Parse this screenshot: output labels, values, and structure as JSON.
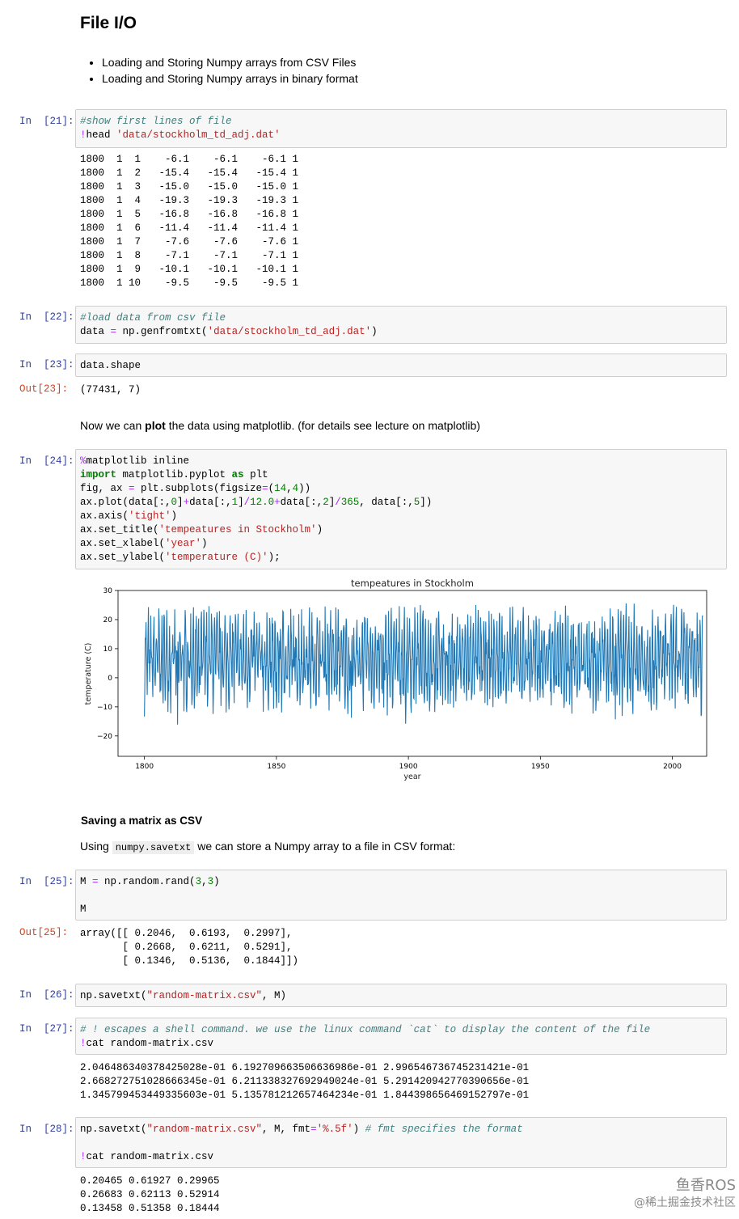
{
  "heading": "File I/O",
  "bullets": [
    "Loading and Storing Numpy arrays from CSV Files",
    "Loading and Storing Numpy arrays in binary format"
  ],
  "cells": {
    "c21": {
      "prompt": "In  [21]:",
      "comment": "#show first lines of file",
      "bang": "!",
      "cmd": "head ",
      "arg": "'data/stockholm_td_adj.dat'"
    },
    "c21_out": [
      "1800  1  1    -6.1    -6.1    -6.1 1",
      "1800  1  2   -15.4   -15.4   -15.4 1",
      "1800  1  3   -15.0   -15.0   -15.0 1",
      "1800  1  4   -19.3   -19.3   -19.3 1",
      "1800  1  5   -16.8   -16.8   -16.8 1",
      "1800  1  6   -11.4   -11.4   -11.4 1",
      "1800  1  7    -7.6    -7.6    -7.6 1",
      "1800  1  8    -7.1    -7.1    -7.1 1",
      "1800  1  9   -10.1   -10.1   -10.1 1",
      "1800  1 10    -9.5    -9.5    -9.5 1"
    ],
    "c22": {
      "prompt": "In  [22]:",
      "comment": "#load data from csv file",
      "code_pre": "data ",
      "eq": "=",
      "code_mid": " np.genfromtxt(",
      "arg": "'data/stockholm_td_adj.dat'",
      "code_post": ")"
    },
    "c23": {
      "prompt": "In  [23]:",
      "code": "data.shape",
      "out_prompt": "Out[23]:",
      "out": "(77431, 7)"
    },
    "plot_text": {
      "pre": "Now we can ",
      "bold": "plot",
      "post": " the data using matplotlib. (for details see lecture on matplotlib)"
    },
    "c24": {
      "prompt": "In  [24]:",
      "lines": [
        "%matplotlib inline",
        "import matplotlib.pyplot as plt",
        "fig, ax = plt.subplots(figsize=(14,4))",
        "ax.plot(data[:,0]+data[:,1]/12.0+data[:,2]/365, data[:,5])",
        "ax.axis('tight')",
        "ax.set_title('tempeatures in Stockholm')",
        "ax.set_xlabel('year')",
        "ax.set_ylabel('temperature (C)');"
      ]
    },
    "saving_heading": "Saving a matrix as CSV",
    "saving_text": {
      "pre": "Using ",
      "code": "numpy.savetxt",
      "post": " we can store a Numpy array to a file in CSV format:"
    },
    "c25": {
      "prompt": "In  [25]:",
      "line1": "M = np.random.rand(3,3)",
      "line2": "M",
      "out_prompt": "Out[25]:",
      "out": [
        "array([[ 0.2046,  0.6193,  0.2997],",
        "       [ 0.2668,  0.6211,  0.5291],",
        "       [ 0.1346,  0.5136,  0.1844]])"
      ]
    },
    "c26": {
      "prompt": "In  [26]:",
      "code": "np.savetxt(\"random-matrix.csv\", M)"
    },
    "c27": {
      "prompt": "In  [27]:",
      "comment": "# ! escapes a shell command. we use the linux command `cat` to display the content of the file",
      "line2": "!cat random-matrix.csv",
      "out": [
        "2.046486340378425028e-01 6.192709663506636986e-01 2.996546736745231421e-01",
        "2.668272751028666345e-01 6.211338327692949024e-01 5.291420942770390656e-01",
        "1.345799453449335603e-01 5.135781212657464234e-01 1.844398656469152797e-01"
      ]
    },
    "c28": {
      "prompt": "In  [28]:",
      "line1": "np.savetxt(\"random-matrix.csv\", M, fmt='%.5f') # fmt specifies the format",
      "line2": "!cat random-matrix.csv",
      "out": [
        "0.20465 0.61927 0.29965",
        "0.26683 0.62113 0.52914",
        "0.13458 0.51358 0.18444"
      ]
    }
  },
  "watermark": {
    "line1": "鱼香ROS",
    "line2": "@稀土掘金技术社区"
  },
  "chart_data": {
    "type": "line",
    "title": "tempeatures in Stockholm",
    "xlabel": "year",
    "ylabel": "temperature (C)",
    "xlim": [
      1790,
      2013
    ],
    "ylim": [
      -27,
      30
    ],
    "xticks": [
      1800,
      1850,
      1900,
      1950,
      2000
    ],
    "yticks": [
      -20,
      -10,
      0,
      10,
      20,
      30
    ],
    "series_color": "#1f77b4",
    "series": [
      {
        "x_range": [
          1800,
          2011.5
        ],
        "typical_low": -21,
        "typical_high": 22,
        "mean": 6.2
      }
    ]
  }
}
